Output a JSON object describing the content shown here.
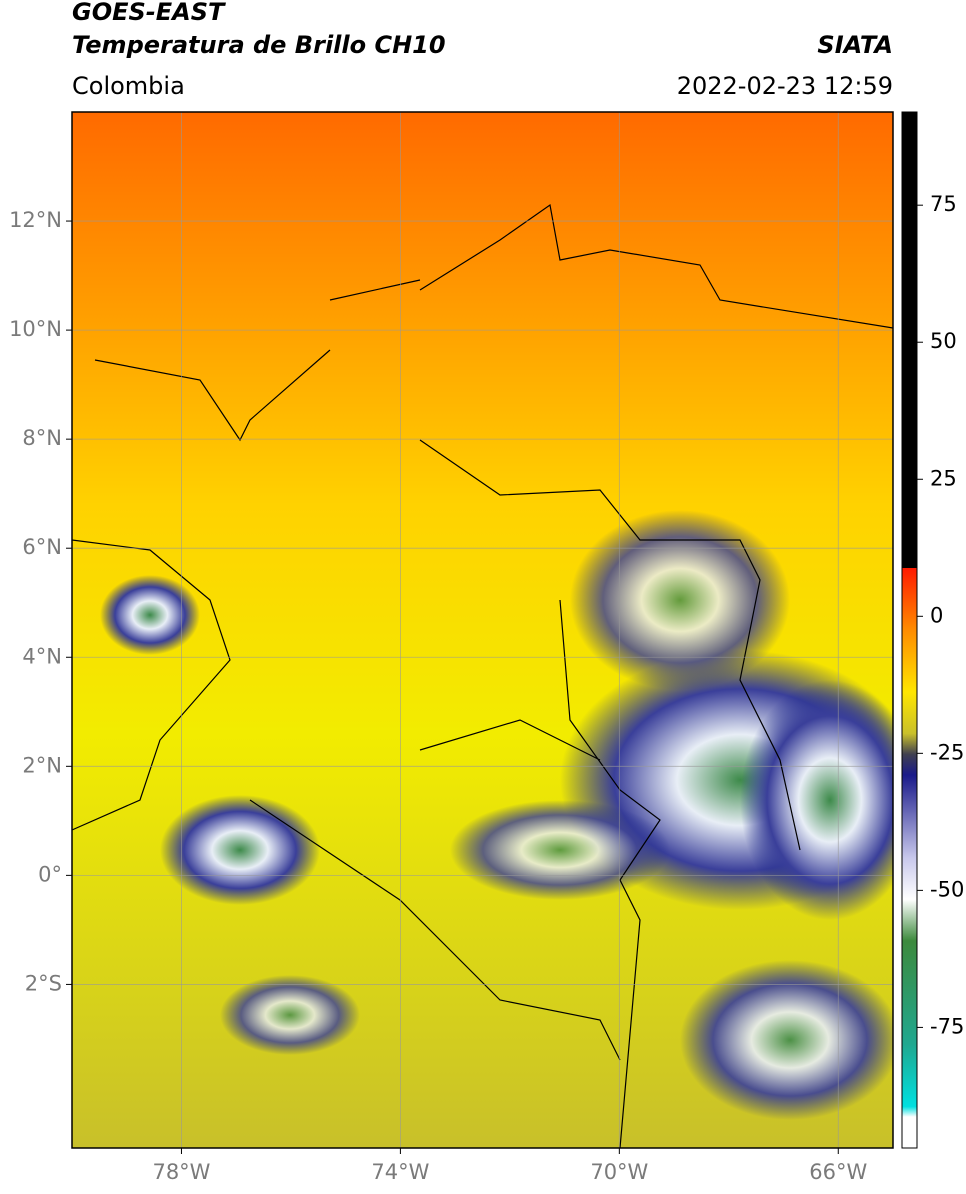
{
  "header": {
    "satellite": "GOES-EAST",
    "product": "Temperatura de Brillo CH10",
    "source": "SIATA",
    "region": "Colombia",
    "datetime": "2022-02-23 12:59"
  },
  "map": {
    "lonlim": [
      -80,
      -65
    ],
    "latlim": [
      -5,
      14
    ],
    "lonticks": [
      {
        "value": -78,
        "label": "78°W"
      },
      {
        "value": -74,
        "label": "74°W"
      },
      {
        "value": -70,
        "label": "70°W"
      },
      {
        "value": -66,
        "label": "66°W"
      }
    ],
    "latticks": [
      {
        "value": 12,
        "label": "12°N"
      },
      {
        "value": 10,
        "label": "10°N"
      },
      {
        "value": 8,
        "label": "8°N"
      },
      {
        "value": 6,
        "label": "6°N"
      },
      {
        "value": 4,
        "label": "4°N"
      },
      {
        "value": 2,
        "label": "2°N"
      },
      {
        "value": 0,
        "label": "0°"
      },
      {
        "value": -2,
        "label": "2°S"
      }
    ],
    "grid": true
  },
  "colorbar": {
    "lim": [
      -97,
      92
    ],
    "ticks": [
      75,
      50,
      25,
      0,
      -25,
      -50,
      -75
    ]
  }
}
